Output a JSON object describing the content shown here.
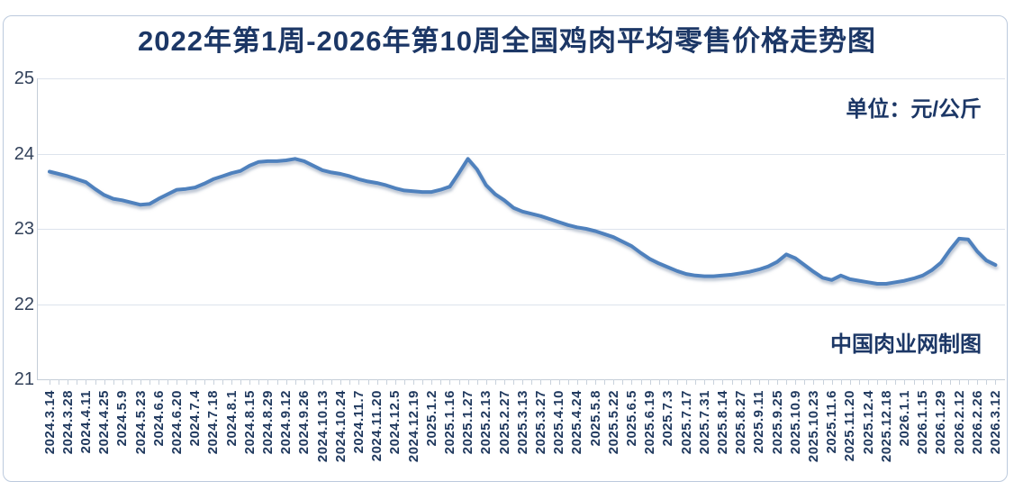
{
  "page": {
    "title": "2022年第1周-2026年第10周全国鸡肉平均零售价格走势图",
    "unit_label": "单位：元/公斤",
    "watermark": "中国肉业网制图"
  },
  "colors": {
    "title_text": "#1c3766",
    "line": "#4f81bd",
    "grid": "#dde3ec",
    "axis": "#c4cdd8",
    "tick": "#c9d2dc",
    "axis_label": "#32415a",
    "date_label": "#20395e",
    "border": "#bccadd"
  },
  "chart_data": {
    "type": "line",
    "title": "2022年第1周-2026年第10周全国鸡肉平均零售价格走势图",
    "unit": "元/公斤",
    "xlabel": "",
    "ylabel": "",
    "ylim": [
      21,
      25
    ],
    "y_ticks": [
      25,
      24,
      23,
      22,
      21
    ],
    "grid": "horizontal",
    "legend": "none",
    "label_every": 2,
    "x_labels": [
      "2024.3.14",
      "2024.3.28",
      "2024.4.11",
      "2024.4.25",
      "2024.5.9",
      "2024.5.23",
      "2024.6.6",
      "2024.6.20",
      "2024.7.4",
      "2024.7.18",
      "2024.8.1",
      "2024.8.15",
      "2024.8.29",
      "2024.9.12",
      "2024.9.26",
      "2024.10.13",
      "2024.10.24",
      "2024.11.7",
      "2024.11.20",
      "2024.12.5",
      "2024.12.19",
      "2025.1.2",
      "2025.1.16",
      "2025.1.27",
      "2025.2.13",
      "2025.2.27",
      "2025.3.13",
      "2025.3.27",
      "2025.4.10",
      "2025.4.24",
      "2025.5.8",
      "2025.5.22",
      "2025.6.5",
      "2025.6.19",
      "2025.7.3",
      "2025.7.17",
      "2025.7.31",
      "2025.8.14",
      "2025.8.27",
      "2025.9.11",
      "2025.9.25",
      "2025.10.9",
      "2025.10.23",
      "2025.11.6",
      "2025.11.20",
      "2025.12.4",
      "2025.12.18",
      "2026.1.1",
      "2026.1.15",
      "2026.1.29",
      "2026.2.12",
      "2026.2.26",
      "2026.3.12"
    ],
    "series": [
      {
        "name": "全国鸡肉平均零售价格",
        "color": "#4f81bd",
        "values": [
          23.76,
          23.73,
          23.7,
          23.66,
          23.62,
          23.53,
          23.45,
          23.4,
          23.38,
          23.35,
          23.32,
          23.33,
          23.4,
          23.46,
          23.52,
          23.53,
          23.55,
          23.6,
          23.66,
          23.7,
          23.74,
          23.77,
          23.84,
          23.89,
          23.9,
          23.9,
          23.91,
          23.93,
          23.9,
          23.84,
          23.78,
          23.75,
          23.73,
          23.7,
          23.66,
          23.63,
          23.61,
          23.58,
          23.54,
          23.51,
          23.5,
          23.49,
          23.49,
          23.52,
          23.56,
          23.74,
          23.93,
          23.79,
          23.58,
          23.46,
          23.38,
          23.28,
          23.23,
          23.2,
          23.17,
          23.13,
          23.09,
          23.05,
          23.02,
          23.0,
          22.97,
          22.93,
          22.89,
          22.83,
          22.77,
          22.68,
          22.6,
          22.54,
          22.49,
          22.44,
          22.4,
          22.38,
          22.37,
          22.37,
          22.38,
          22.39,
          22.41,
          22.43,
          22.46,
          22.5,
          22.56,
          22.66,
          22.61,
          22.52,
          22.43,
          22.35,
          22.32,
          22.38,
          22.33,
          22.31,
          22.29,
          22.27,
          22.27,
          22.29,
          22.31,
          22.34,
          22.38,
          22.45,
          22.55,
          22.72,
          22.87,
          22.86,
          22.7,
          22.58,
          22.52
        ]
      }
    ]
  }
}
